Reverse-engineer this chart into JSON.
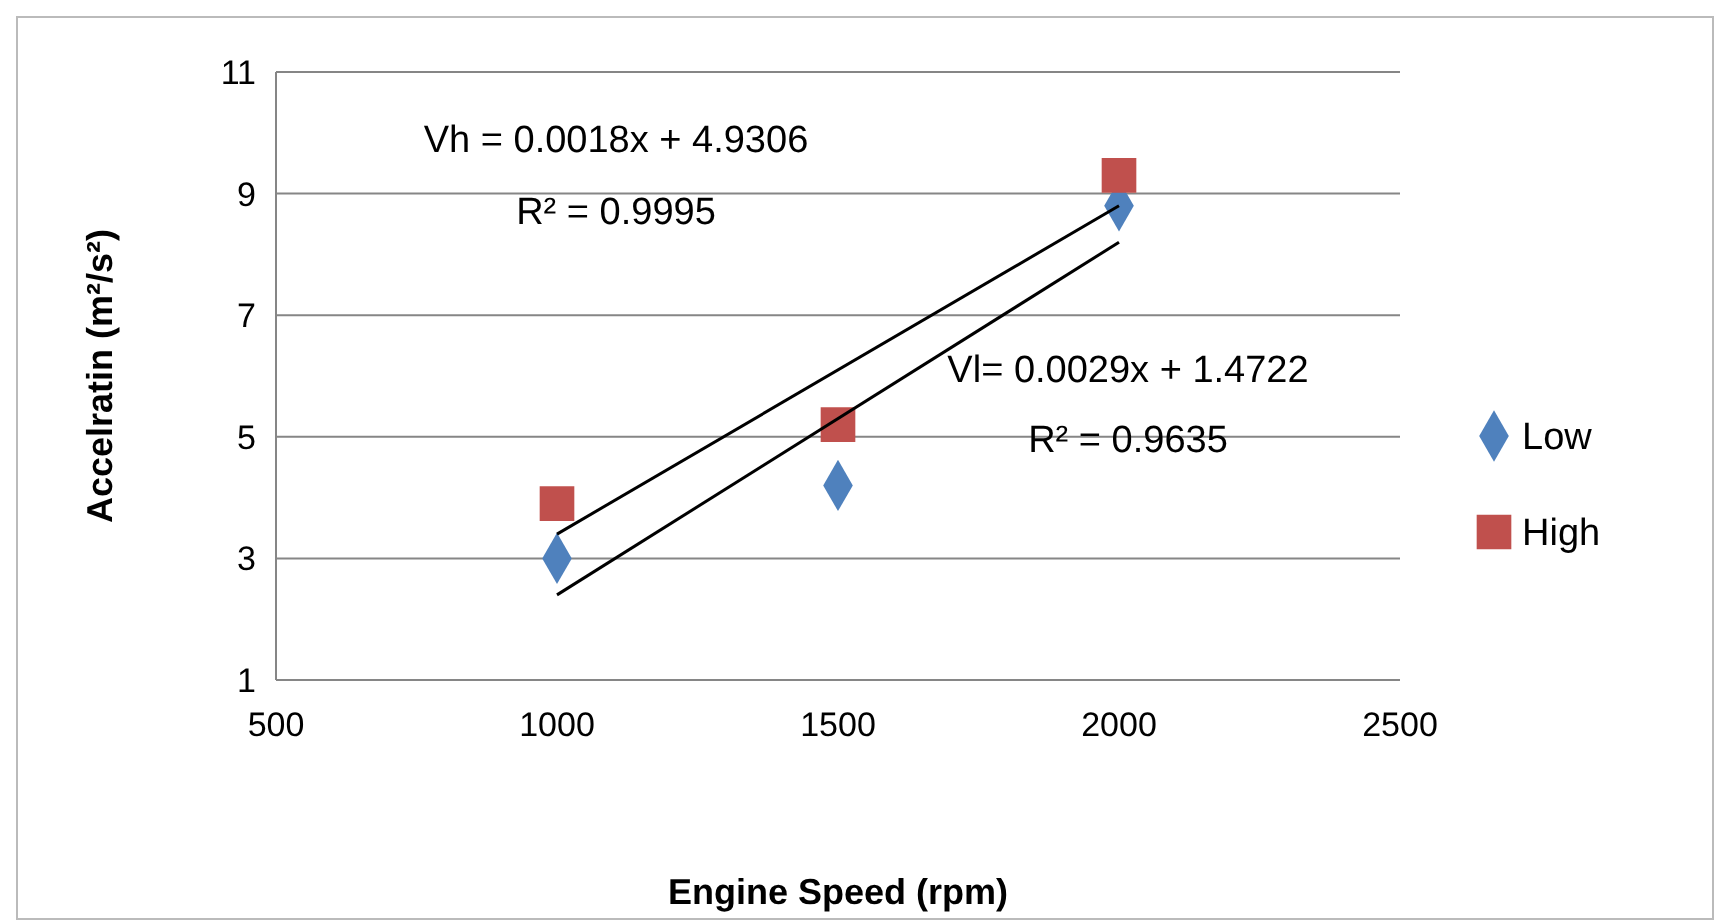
{
  "chart_data": {
    "type": "scatter",
    "xlabel": "Engine Speed (rpm)",
    "ylabel": "Accelratin (m²/s²)",
    "xlim": [
      500,
      2500
    ],
    "xticks": [
      500,
      1000,
      1500,
      2000,
      2500
    ],
    "ylim": [
      1,
      11
    ],
    "yticks": [
      1,
      3,
      5,
      7,
      9,
      11
    ],
    "grid": "y",
    "legend": "right",
    "series": [
      {
        "name": "Low",
        "color": "#4f81bd",
        "marker": "diamond",
        "x": [
          1000,
          1500,
          2000
        ],
        "values": [
          3.0,
          4.2,
          8.8
        ]
      },
      {
        "name": "High",
        "color": "#c0504d",
        "marker": "square",
        "x": [
          1000,
          1500,
          2000
        ],
        "values": [
          3.9,
          5.2,
          9.3
        ]
      },
      {
        "type": "line",
        "color": "#000000",
        "marker": "none",
        "x": [
          1000,
          2000
        ],
        "values": [
          3.4,
          8.8
        ]
      },
      {
        "type": "line",
        "color": "#000000",
        "marker": "none",
        "x": [
          1000,
          2000
        ],
        "values": [
          2.4,
          8.2
        ]
      }
    ],
    "annotations": [
      "Vh = 0.0018x + 4.9306",
      "R² = 0.9995",
      "Vl= 0.0029x + 1.4722",
      "R² = 0.9635"
    ]
  }
}
